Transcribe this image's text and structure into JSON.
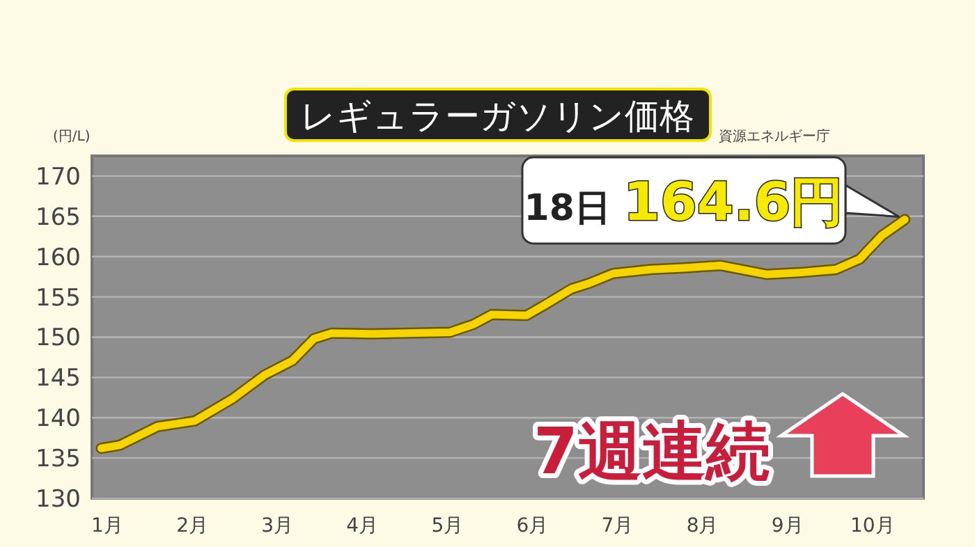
{
  "chart_data": {
    "type": "line",
    "title": "レギュラーガソリン価格",
    "ylabel": "(円/L)",
    "color": "#f5d400",
    "x": [
      0.93,
      1.15,
      1.59,
      2.03,
      2.48,
      2.85,
      3.18,
      3.43,
      3.64,
      4.11,
      5.03,
      5.31,
      5.52,
      5.93,
      6.13,
      6.46,
      6.67,
      6.95,
      7.39,
      7.77,
      8.21,
      8.75,
      9.13,
      9.57,
      9.85,
      10.11,
      10.38
    ],
    "values": [
      136.2,
      136.6,
      138.9,
      139.6,
      142.4,
      145.3,
      147.1,
      149.8,
      150.5,
      150.4,
      150.6,
      151.6,
      152.8,
      152.7,
      153.9,
      156.0,
      156.7,
      157.9,
      158.4,
      158.6,
      158.9,
      157.8,
      158.0,
      158.4,
      159.7,
      162.6,
      164.6
    ],
    "xlim": [
      0.82,
      10.6
    ],
    "ylim": [
      130,
      172.5
    ],
    "xticks": [
      {
        "value": 1,
        "label": "1月"
      },
      {
        "value": 2,
        "label": "2月"
      },
      {
        "value": 3,
        "label": "3月"
      },
      {
        "value": 4,
        "label": "4月"
      },
      {
        "value": 5,
        "label": "5月"
      },
      {
        "value": 6,
        "label": "6月"
      },
      {
        "value": 7,
        "label": "7月"
      },
      {
        "value": 8,
        "label": "8月"
      },
      {
        "value": 9,
        "label": "9月"
      },
      {
        "value": 10,
        "label": "10月"
      }
    ],
    "yticks": [
      130,
      135,
      140,
      145,
      150,
      155,
      160,
      165,
      170
    ],
    "grid": "y",
    "annotations": [
      {
        "text": "18日 164.6円",
        "x": 10.38,
        "y": 164.6
      },
      "7週連続",
      "資源エネルギー庁"
    ]
  }
}
